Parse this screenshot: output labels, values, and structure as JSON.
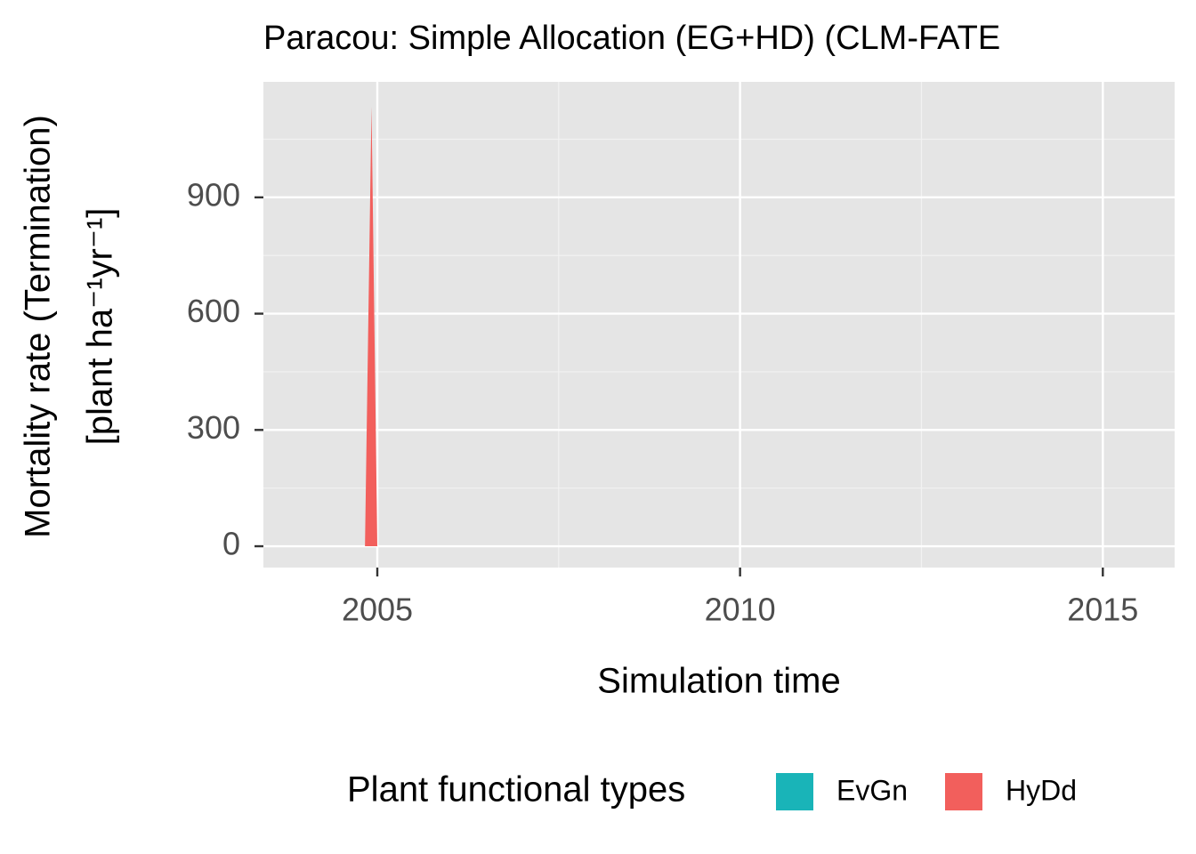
{
  "chart_data": {
    "type": "stacked_area",
    "title": "Paracou: Simple Allocation (EG+HD) (CLM-FATE",
    "x_label": "Simulation time",
    "y_label": [
      "Mortality rate (Termination)",
      "[plant ha⁻¹yr⁻¹]"
    ],
    "legend_title": "Plant functional types",
    "legend_position": "bottom",
    "x": [
      2004.83,
      2004.92,
      2005.0
    ],
    "series": [
      {
        "name": "EvGn",
        "color": "#19b4b8",
        "values": [
          0,
          0,
          0
        ]
      },
      {
        "name": "HyDd",
        "color": "#f25f5c",
        "values": [
          0,
          1134,
          0
        ]
      }
    ],
    "xlim": [
      2003.43,
      2015.99
    ],
    "xticks": [
      2005,
      2010,
      2015
    ],
    "x_minor_grid": [
      2007.5,
      2012.5
    ],
    "ylim": [
      -55,
      1198
    ],
    "yticks": [
      0,
      300,
      600,
      900
    ],
    "y_minor_grid": [
      150,
      450,
      750,
      1050
    ],
    "grid": true
  }
}
